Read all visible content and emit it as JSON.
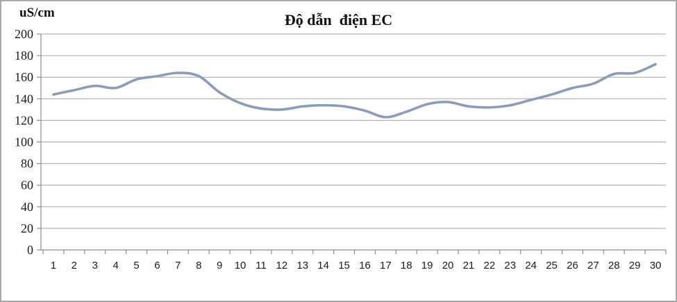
{
  "header": {
    "title": "Độ dẫn  điện EC",
    "unit_label": "uS/cm"
  },
  "colors": {
    "line": "#8a9cba",
    "gridline": "#a3a3a3",
    "axis": "#8c8c8c",
    "text": "#1a1a1a",
    "background": "#ffffff",
    "border": "#a8a8a8"
  },
  "chart_data": {
    "type": "line",
    "smooth": true,
    "title": "Độ dẫn  điện EC",
    "xlabel": "",
    "ylabel": "uS/cm",
    "ylim": [
      0,
      200
    ],
    "ytick_step": 20,
    "grid": true,
    "legend": false,
    "x": [
      1,
      2,
      3,
      4,
      5,
      6,
      7,
      8,
      9,
      10,
      11,
      12,
      13,
      14,
      15,
      16,
      17,
      18,
      19,
      20,
      21,
      22,
      23,
      24,
      25,
      26,
      27,
      28,
      29,
      30
    ],
    "values": [
      144,
      148,
      152,
      150,
      158,
      161,
      164,
      161,
      146,
      136,
      131,
      130,
      133,
      134,
      133,
      129,
      123,
      128,
      135,
      137,
      133,
      132,
      134,
      139,
      144,
      150,
      154,
      163,
      164,
      172
    ]
  }
}
